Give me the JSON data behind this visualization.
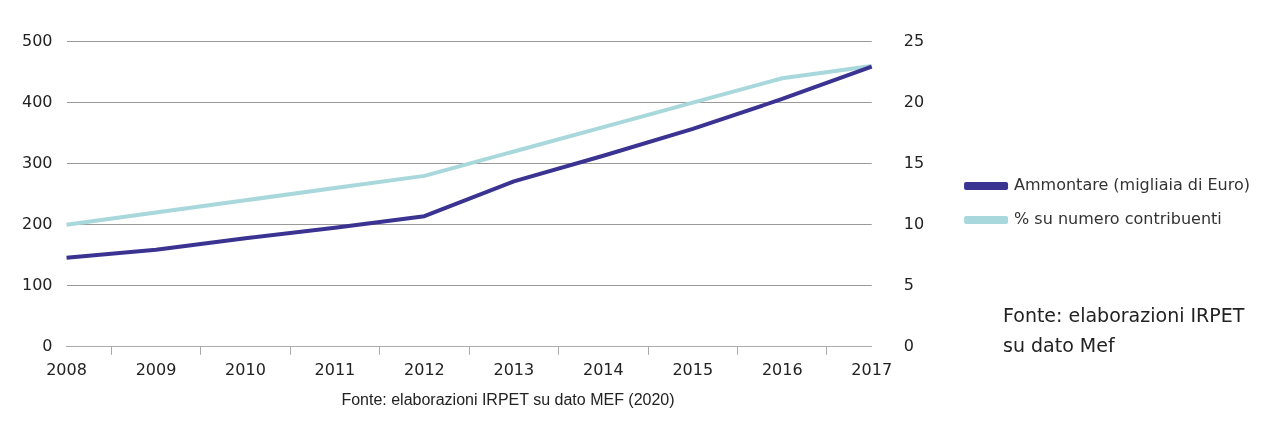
{
  "chart_data": {
    "type": "line",
    "categories": [
      "2008",
      "2009",
      "2010",
      "2011",
      "2012",
      "2013",
      "2014",
      "2015",
      "2016",
      "2017"
    ],
    "series": [
      {
        "name": "Ammontare (migliaia di Euro)",
        "color": "#3a3391",
        "values": [
          146,
          159,
          178,
          195,
          214,
          271,
          313,
          357,
          406,
          459
        ]
      },
      {
        "name": "% su numero contribuenti",
        "color": "#a8d8dc",
        "axis": "y2",
        "values": [
          10,
          11,
          12,
          13,
          14,
          16,
          18,
          20,
          22,
          23
        ]
      }
    ],
    "ylim": [
      0,
      500
    ],
    "yticks": [
      0,
      100,
      200,
      300,
      400,
      500
    ],
    "y2lim": [
      0,
      25
    ],
    "y2ticks": [
      0,
      5,
      10,
      15,
      20,
      25
    ],
    "grid": "y",
    "legend": "right",
    "marker": "none",
    "line_style": "solid",
    "annotations": [
      "Fonte: elaborazioni IRPET su dato MEF (2020)",
      "Fonte: elaborazioni IRPET\nsu dato Mef"
    ]
  }
}
